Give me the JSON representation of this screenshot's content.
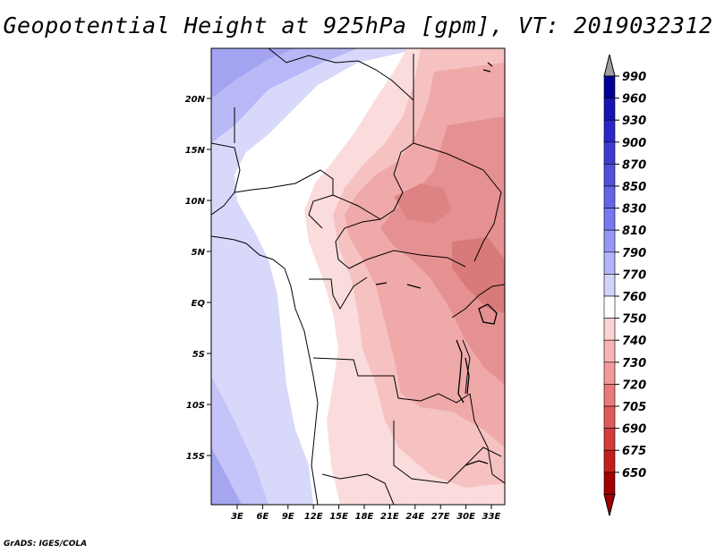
{
  "title": "Geopotential Height at 925hPa [gpm], VT: 2019032312",
  "footer": "GrADS: IGES/COLA",
  "map": {
    "lat_labels": [
      "20N",
      "15N",
      "10N",
      "5N",
      "EQ",
      "5S",
      "10S",
      "15S"
    ],
    "lon_labels": [
      "3E",
      "6E",
      "9E",
      "12E",
      "15E",
      "18E",
      "21E",
      "24E",
      "27E",
      "30E",
      "33E"
    ]
  },
  "colorbar": {
    "labels": [
      "990",
      "960",
      "930",
      "900",
      "870",
      "850",
      "830",
      "810",
      "790",
      "770",
      "760",
      "750",
      "740",
      "730",
      "720",
      "705",
      "690",
      "675",
      "650"
    ],
    "colors": [
      "#000096",
      "#1414b4",
      "#2828c8",
      "#3c3cd2",
      "#5050dc",
      "#6464e6",
      "#7878f0",
      "#9696f5",
      "#b4b4fa",
      "#d2d2fc",
      "#ffffff",
      "#fcd2d2",
      "#f8b4b4",
      "#f29a9a",
      "#ea7a7a",
      "#e05a5a",
      "#d43c3c",
      "#c41e1e",
      "#a00000"
    ],
    "top_arrow_color": "#a0a0a0",
    "bottom_arrow_color": "#a00000"
  }
}
